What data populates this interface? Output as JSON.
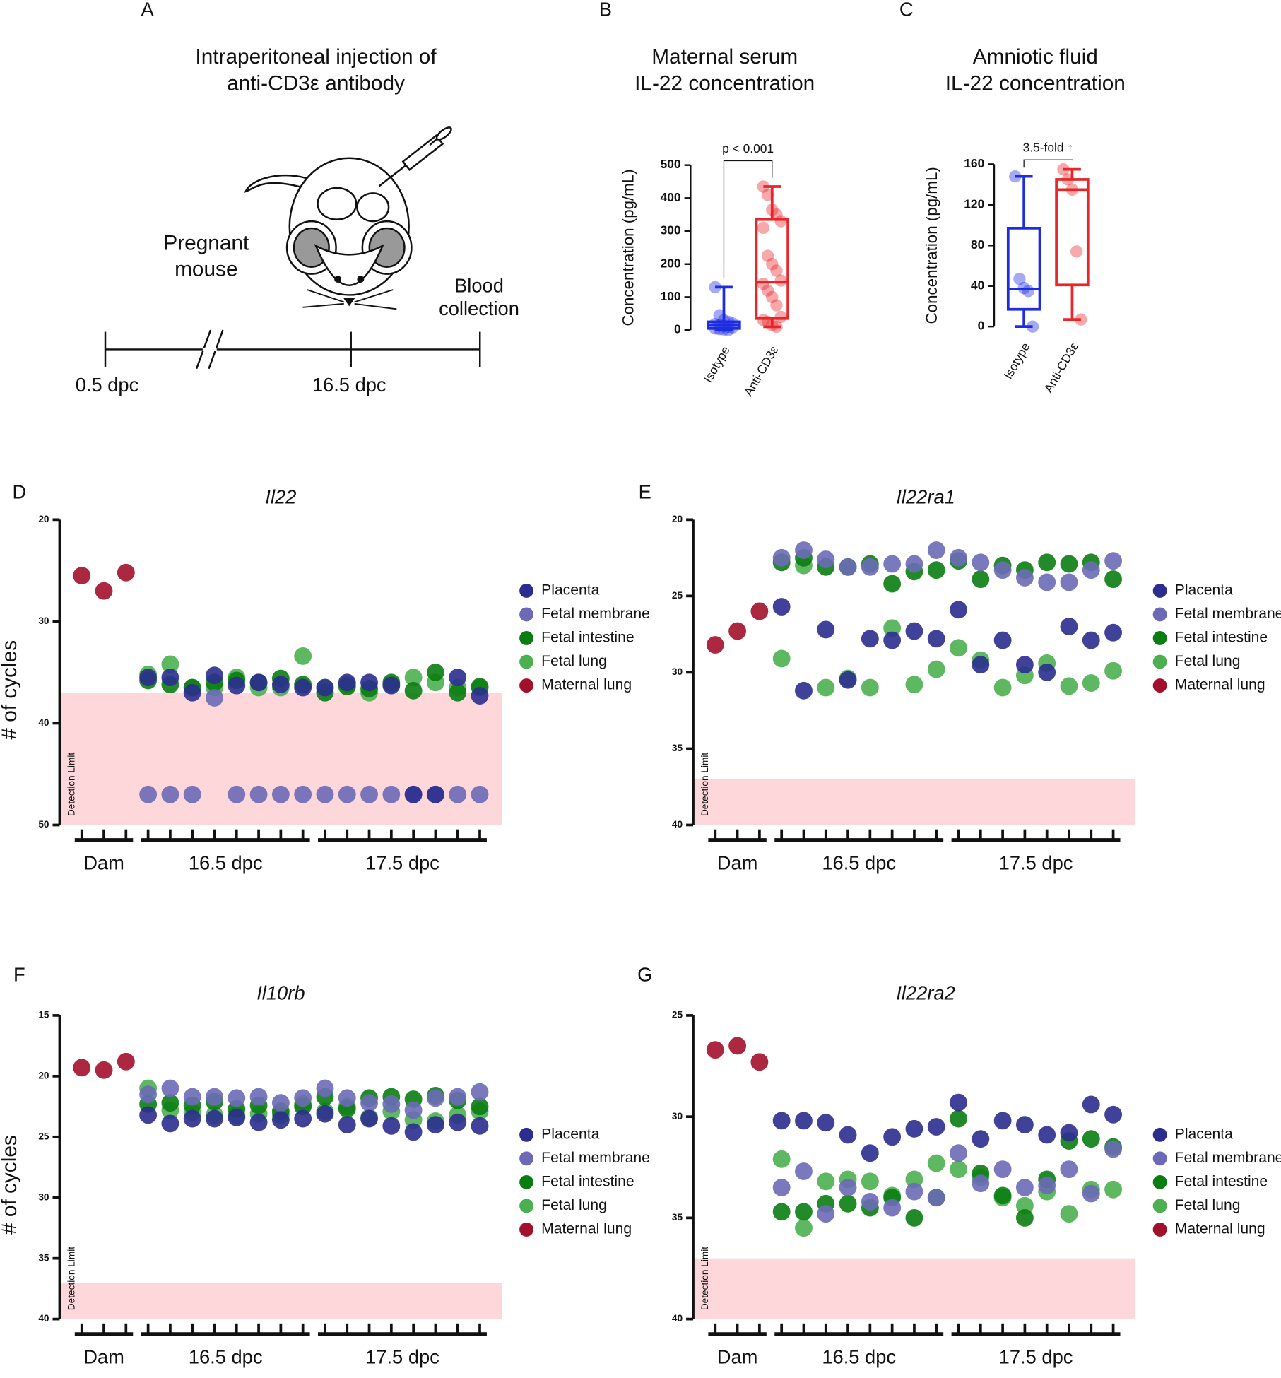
{
  "diagram": {
    "panel": "A",
    "title_lines": [
      "Intraperitoneal injection of",
      "anti-CD3ε antibody"
    ],
    "subject_lines": [
      "Pregnant",
      "mouse"
    ],
    "endpoint_lines": [
      "Blood",
      "collection"
    ],
    "timeline_labels": [
      "0.5 dpc",
      "16.5 dpc"
    ]
  },
  "chart_data": [
    {
      "type": "box",
      "panel": "B",
      "title_lines": [
        "Maternal serum",
        "IL-22 concentration"
      ],
      "ylabel": "Concentration (pg/mL)",
      "categories": [
        "Isotype",
        "Anti-CD3ε"
      ],
      "ylim": [
        0,
        500
      ],
      "yticks": [
        0,
        100,
        200,
        300,
        400,
        500
      ],
      "annotation": "p < 0.001",
      "boxes": [
        {
          "color": "#1f2de0",
          "min": 0,
          "q1": 5,
          "median": 15,
          "q3": 25,
          "max": 130,
          "points": [
            130,
            45,
            30,
            25,
            20,
            18,
            15,
            12,
            10,
            8,
            5,
            3,
            2,
            0
          ]
        },
        {
          "color": "#e8262a",
          "min": 10,
          "q1": 35,
          "median": 145,
          "q3": 335,
          "max": 435,
          "points": [
            435,
            410,
            365,
            350,
            330,
            310,
            225,
            200,
            180,
            150,
            140,
            120,
            100,
            75,
            40,
            30,
            25,
            15,
            10
          ]
        }
      ]
    },
    {
      "type": "box",
      "panel": "C",
      "title_lines": [
        "Amniotic fluid",
        "IL-22 concentration"
      ],
      "ylabel": "Concentration (pg/mL)",
      "categories": [
        "Isotype",
        "Anti-CD3ε"
      ],
      "ylim": [
        0,
        160
      ],
      "yticks": [
        0,
        40,
        80,
        120,
        160
      ],
      "annotation": "3.5-fold ↑",
      "boxes": [
        {
          "color": "#1f2de0",
          "min": 0,
          "q1": 17,
          "median": 37,
          "q3": 97,
          "max": 148,
          "points": [
            148,
            47,
            38,
            35,
            0
          ]
        },
        {
          "color": "#e8262a",
          "min": 7,
          "q1": 41,
          "median": 135,
          "q3": 145,
          "max": 155,
          "points": [
            155,
            145,
            135,
            74,
            7
          ]
        }
      ]
    },
    {
      "type": "scatter",
      "panel": "D",
      "title": "Il22",
      "ylabel": "# of cycles",
      "ylim": [
        20,
        50
      ],
      "yticks": [
        20,
        30,
        40,
        50
      ],
      "y_inverted": true,
      "xlim": [
        0,
        20
      ],
      "detection_limit": 37,
      "detection_label": "Detection Limit",
      "detection_color": "#fdd7d9",
      "groups": [
        {
          "label": "Dam",
          "ticks": [
            1,
            2,
            3
          ]
        },
        {
          "label": "16.5 dpc",
          "ticks": [
            4,
            5,
            6,
            7,
            8,
            9,
            10,
            11
          ]
        },
        {
          "label": "17.5 dpc",
          "ticks": [
            12,
            13,
            14,
            15,
            16,
            17,
            18,
            19
          ]
        }
      ],
      "series": [
        {
          "name": "Placenta",
          "color": "#2b2e8f",
          "x": [
            4,
            5,
            6,
            7,
            8,
            9,
            10,
            11,
            12,
            13,
            14,
            15,
            16,
            17,
            18,
            19
          ],
          "values": [
            35.5,
            35.5,
            37,
            35.3,
            36.3,
            36,
            36.2,
            36.5,
            36.5,
            36,
            36,
            36.3,
            47,
            47,
            35.5,
            37.3
          ]
        },
        {
          "name": "Fetal membrane",
          "color": "#6c6ab6",
          "x": [
            4,
            5,
            6,
            7,
            8,
            9,
            10,
            11,
            12,
            13,
            14,
            15,
            16,
            17,
            18,
            19
          ],
          "values": [
            47,
            47,
            47,
            37.5,
            47,
            47,
            47,
            47,
            47,
            47,
            47,
            47,
            47,
            47,
            47,
            47
          ]
        },
        {
          "name": "Fetal intestine",
          "color": "#0a7d12",
          "x": [
            4,
            5,
            6,
            7,
            8,
            9,
            10,
            11,
            12,
            13,
            14,
            15,
            16,
            17,
            18,
            19
          ],
          "values": [
            35.8,
            36.2,
            36.5,
            36,
            35.8,
            36,
            35.6,
            36.2,
            37,
            36.4,
            36.6,
            36,
            36.8,
            35,
            37,
            36.4
          ]
        },
        {
          "name": "Fetal lung",
          "color": "#4caf50",
          "x": [
            4,
            5,
            6,
            7,
            8,
            9,
            10,
            11,
            12,
            13,
            14,
            15,
            16,
            17,
            18,
            19
          ],
          "values": [
            35.2,
            34.2,
            36.5,
            36.5,
            35.5,
            36.5,
            36.5,
            33.4,
            36.5,
            36.2,
            37,
            36.2,
            35.5,
            36,
            36.5,
            36.5
          ]
        },
        {
          "name": "Maternal lung",
          "color": "#a3102b",
          "x": [
            1,
            2,
            3
          ],
          "values": [
            25.5,
            27,
            25.2
          ]
        }
      ]
    },
    {
      "type": "scatter",
      "panel": "E",
      "title": "Il22ra1",
      "ylim": [
        20,
        40
      ],
      "yticks": [
        20,
        25,
        30,
        35,
        40
      ],
      "y_inverted": true,
      "xlim": [
        0,
        20
      ],
      "detection_limit": 37,
      "detection_label": "Detection Limit",
      "detection_color": "#fdd7d9",
      "groups": [
        {
          "label": "Dam",
          "ticks": [
            1,
            2,
            3
          ]
        },
        {
          "label": "16.5 dpc",
          "ticks": [
            4,
            5,
            6,
            7,
            8,
            9,
            10,
            11
          ]
        },
        {
          "label": "17.5 dpc",
          "ticks": [
            12,
            13,
            14,
            15,
            16,
            17,
            18,
            19
          ]
        }
      ],
      "series": [
        {
          "name": "Placenta",
          "color": "#2b2e8f",
          "x": [
            4,
            5,
            6,
            7,
            8,
            9,
            10,
            11,
            12,
            13,
            14,
            15,
            16,
            17,
            18,
            19
          ],
          "values": [
            25.7,
            31.2,
            27.2,
            30.5,
            27.8,
            27.9,
            27.3,
            27.8,
            25.9,
            29.5,
            27.9,
            29.5,
            30,
            27,
            27.9,
            27.4
          ]
        },
        {
          "name": "Fetal membrane",
          "color": "#6c6ab6",
          "x": [
            4,
            5,
            6,
            7,
            8,
            9,
            10,
            11,
            12,
            13,
            14,
            15,
            16,
            17,
            18,
            19
          ],
          "values": [
            22.5,
            22,
            22.6,
            23.1,
            23.1,
            22.9,
            22.9,
            22,
            22.5,
            22.8,
            23.3,
            23.8,
            24.1,
            24.1,
            23.3,
            22.7
          ]
        },
        {
          "name": "Fetal intestine",
          "color": "#0a7d12",
          "x": [
            4,
            5,
            6,
            7,
            8,
            9,
            10,
            11,
            12,
            13,
            14,
            15,
            16,
            17,
            18,
            19
          ],
          "values": [
            22.8,
            22.5,
            23.1,
            23.1,
            22.9,
            24.2,
            23.4,
            23.3,
            22.7,
            23.9,
            23,
            23.3,
            22.8,
            22.9,
            22.8,
            23.9
          ]
        },
        {
          "name": "Fetal lung",
          "color": "#4caf50",
          "x": [
            4,
            5,
            6,
            7,
            8,
            9,
            10,
            11,
            12,
            13,
            14,
            15,
            16,
            17,
            18,
            19
          ],
          "values": [
            29.1,
            23,
            31,
            30.4,
            31,
            27.1,
            30.8,
            29.8,
            28.4,
            29.2,
            31,
            30.2,
            29.4,
            30.9,
            30.7,
            29.9
          ]
        },
        {
          "name": "Maternal lung",
          "color": "#a3102b",
          "x": [
            1,
            2,
            3
          ],
          "values": [
            28.2,
            27.3,
            26
          ]
        }
      ]
    },
    {
      "type": "scatter",
      "panel": "F",
      "title": "Il10rb",
      "ylabel": "# of cycles",
      "ylim": [
        15,
        40
      ],
      "yticks": [
        15,
        20,
        25,
        30,
        35,
        40
      ],
      "y_inverted": true,
      "xlim": [
        0,
        20
      ],
      "detection_limit": 37,
      "detection_label": "Detection Limit",
      "detection_color": "#fdd7d9",
      "groups": [
        {
          "label": "Dam",
          "ticks": [
            1,
            2,
            3
          ]
        },
        {
          "label": "16.5 dpc",
          "ticks": [
            4,
            5,
            6,
            7,
            8,
            9,
            10,
            11
          ]
        },
        {
          "label": "17.5 dpc",
          "ticks": [
            12,
            13,
            14,
            15,
            16,
            17,
            18,
            19
          ]
        }
      ],
      "series": [
        {
          "name": "Placenta",
          "color": "#2b2e8f",
          "x": [
            4,
            5,
            6,
            7,
            8,
            9,
            10,
            11,
            12,
            13,
            14,
            15,
            16,
            17,
            18,
            19
          ],
          "values": [
            23.2,
            23.9,
            23.5,
            23.5,
            23.4,
            23.8,
            23.6,
            23.5,
            23.1,
            24,
            23.5,
            24.1,
            24.6,
            24,
            23.8,
            24.1
          ]
        },
        {
          "name": "Fetal membrane",
          "color": "#6c6ab6",
          "x": [
            4,
            5,
            6,
            7,
            8,
            9,
            10,
            11,
            12,
            13,
            14,
            15,
            16,
            17,
            18,
            19
          ],
          "values": [
            21.5,
            21,
            21.7,
            21.7,
            21.8,
            21.7,
            22.2,
            21.8,
            21,
            21.8,
            22.2,
            22.3,
            22.8,
            21.8,
            21.7,
            21.3
          ]
        },
        {
          "name": "Fetal intestine",
          "color": "#0a7d12",
          "x": [
            4,
            5,
            6,
            7,
            8,
            9,
            10,
            11,
            12,
            13,
            14,
            15,
            16,
            17,
            18,
            19
          ],
          "values": [
            22.3,
            22.2,
            22.4,
            22.1,
            22.7,
            22.4,
            22.9,
            22.5,
            21.7,
            22.7,
            21.8,
            21.7,
            21.9,
            21.6,
            22,
            22.5
          ]
        },
        {
          "name": "Fetal lung",
          "color": "#4caf50",
          "x": [
            4,
            5,
            6,
            7,
            8,
            9,
            10,
            11,
            12,
            13,
            14,
            15,
            16,
            17,
            18,
            19
          ],
          "values": [
            21,
            22.8,
            23,
            23.2,
            23.2,
            23.1,
            23.2,
            22.3,
            22.9,
            22.5,
            23.4,
            22.9,
            23.6,
            23.7,
            23.2,
            22.9
          ]
        },
        {
          "name": "Maternal lung",
          "color": "#a3102b",
          "x": [
            1,
            2,
            3
          ],
          "values": [
            19.3,
            19.5,
            18.8
          ]
        }
      ]
    },
    {
      "type": "scatter",
      "panel": "G",
      "title": "Il22ra2",
      "ylim": [
        25,
        40
      ],
      "yticks": [
        25,
        30,
        35,
        40
      ],
      "y_inverted": true,
      "xlim": [
        0,
        20
      ],
      "detection_limit": 37,
      "detection_label": "Detection Limit",
      "detection_color": "#fdd7d9",
      "groups": [
        {
          "label": "Dam",
          "ticks": [
            1,
            2,
            3
          ]
        },
        {
          "label": "16.5 dpc",
          "ticks": [
            4,
            5,
            6,
            7,
            8,
            9,
            10,
            11
          ]
        },
        {
          "label": "17.5 dpc",
          "ticks": [
            12,
            13,
            14,
            15,
            16,
            17,
            18,
            19
          ]
        }
      ],
      "series": [
        {
          "name": "Placenta",
          "color": "#2b2e8f",
          "x": [
            4,
            5,
            6,
            7,
            8,
            9,
            10,
            11,
            12,
            13,
            14,
            15,
            16,
            17,
            18,
            19
          ],
          "values": [
            30.2,
            30.2,
            30.3,
            30.9,
            31.8,
            31,
            30.6,
            30.5,
            29.3,
            31.1,
            30.2,
            30.4,
            30.9,
            30.8,
            29.4,
            29.9
          ]
        },
        {
          "name": "Fetal membrane",
          "color": "#6c6ab6",
          "x": [
            4,
            5,
            6,
            7,
            8,
            9,
            10,
            11,
            12,
            13,
            14,
            15,
            16,
            17,
            18,
            19
          ],
          "values": [
            33.5,
            32.7,
            34.8,
            33.5,
            34.2,
            34.5,
            33.7,
            34,
            31.8,
            33.3,
            32.6,
            33.5,
            33.4,
            32.6,
            33.8,
            31.6
          ]
        },
        {
          "name": "Fetal intestine",
          "color": "#0a7d12",
          "x": [
            4,
            5,
            6,
            7,
            8,
            9,
            10,
            11,
            12,
            13,
            14,
            15,
            16,
            17,
            18,
            19
          ],
          "values": [
            34.7,
            34.7,
            34.3,
            34.3,
            34.5,
            34,
            35,
            34,
            30.1,
            32.8,
            33.9,
            35,
            33.1,
            31.2,
            31.1,
            31.5
          ]
        },
        {
          "name": "Fetal lung",
          "color": "#4caf50",
          "x": [
            4,
            5,
            6,
            7,
            8,
            9,
            10,
            11,
            12,
            13,
            14,
            15,
            16,
            17,
            18,
            19
          ],
          "values": [
            32.1,
            35.5,
            33.2,
            33.1,
            33.2,
            33.9,
            33.1,
            32.3,
            32.6,
            33,
            34,
            34.4,
            33.7,
            34.8,
            33.6,
            33.6
          ]
        },
        {
          "name": "Maternal lung",
          "color": "#a3102b",
          "x": [
            1,
            2,
            3
          ],
          "values": [
            26.7,
            26.5,
            27.3
          ]
        }
      ]
    }
  ]
}
